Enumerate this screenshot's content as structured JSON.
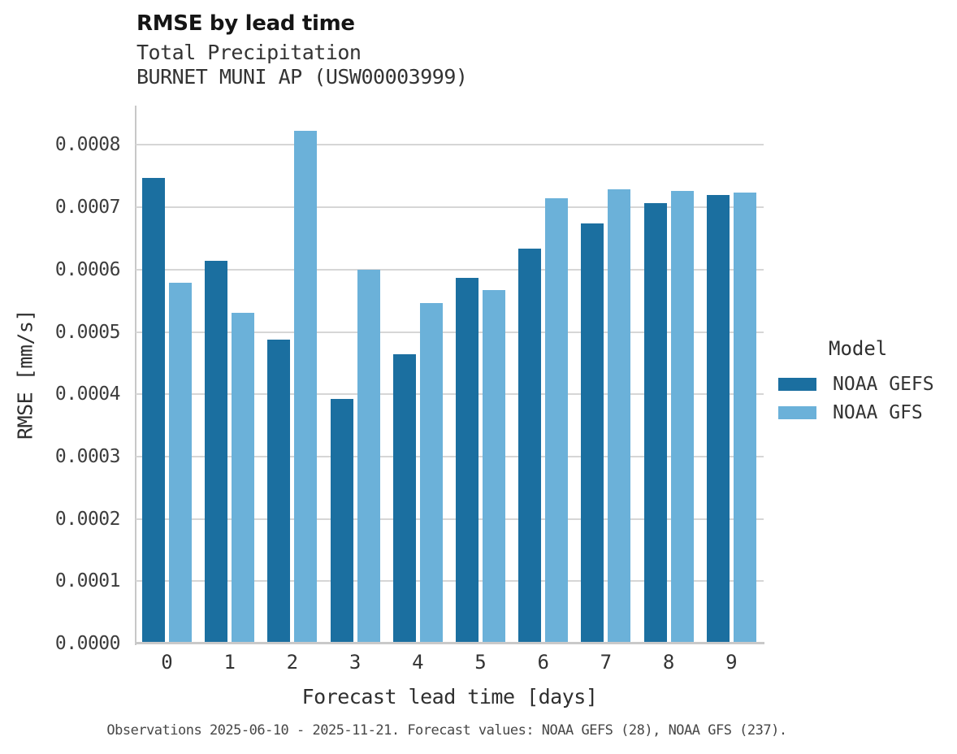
{
  "chart_data": {
    "type": "bar",
    "title": "RMSE by lead time",
    "subtitle1": "Total Precipitation",
    "subtitle2": "BURNET MUNI AP (USW00003999)",
    "xlabel": "Forecast lead time [days]",
    "ylabel": "RMSE [mm/s]",
    "caption": "Observations 2025-06-10 - 2025-11-21. Forecast values: NOAA GEFS (28), NOAA GFS (237).",
    "categories": [
      "0",
      "1",
      "2",
      "3",
      "4",
      "5",
      "6",
      "7",
      "8",
      "9"
    ],
    "series": [
      {
        "name": "NOAA GEFS",
        "color": "#1b6fa0",
        "values": [
          0.000746,
          0.000613,
          0.000486,
          0.000391,
          0.000463,
          0.000585,
          0.000632,
          0.000673,
          0.000705,
          0.000719
        ]
      },
      {
        "name": "NOAA GFS",
        "color": "#6bb1d9",
        "values": [
          0.000578,
          0.00053,
          0.000822,
          0.000598,
          0.000545,
          0.000566,
          0.000713,
          0.000727,
          0.000725,
          0.000722
        ]
      }
    ],
    "ylim": [
      0,
      0.000863
    ],
    "yticks": [
      "0.0000",
      "0.0001",
      "0.0002",
      "0.0003",
      "0.0004",
      "0.0005",
      "0.0006",
      "0.0007",
      "0.0008"
    ],
    "ytick_step": 0.0001,
    "grid": true,
    "legend": {
      "title": "Model",
      "position": "right"
    }
  }
}
